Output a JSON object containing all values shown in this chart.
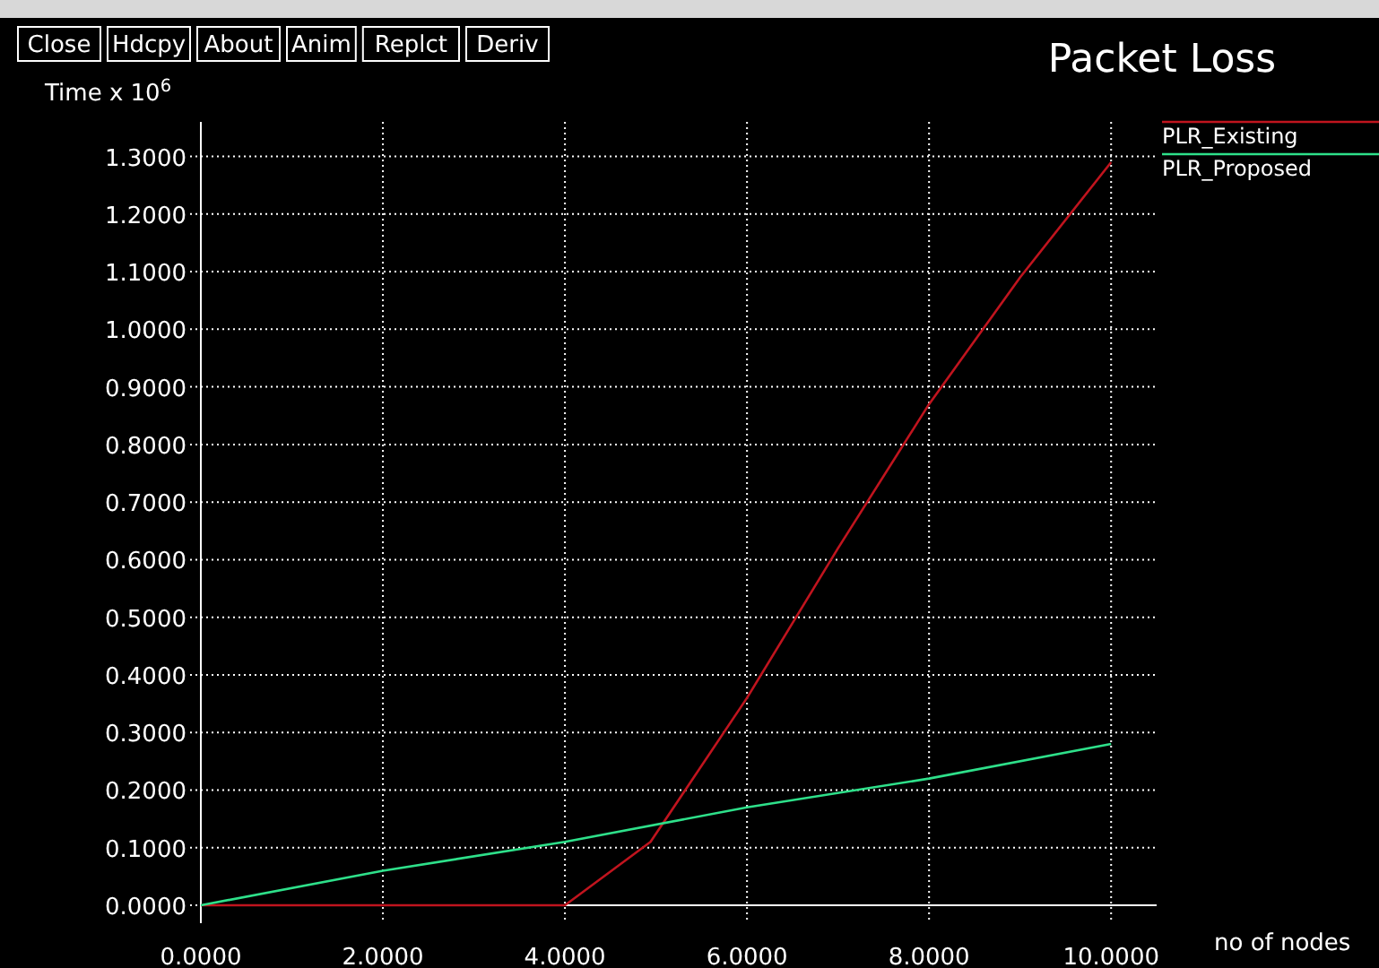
{
  "chart_data": {
    "type": "line",
    "title": "Packet Loss",
    "xlabel": "no of nodes",
    "ylabel": "Time x 10$^{6}$",
    "annotations": [
      "Close",
      "Hdcpy",
      "About",
      "Anim",
      "Replct",
      "Deriv"
    ],
    "xlim": [
      0,
      10.5
    ],
    "ylim": [
      0,
      1.36
    ],
    "xticks": [
      {
        "value": 0,
        "label": "0.0000"
      },
      {
        "value": 2,
        "label": "2.0000"
      },
      {
        "value": 4,
        "label": "4.0000"
      },
      {
        "value": 6,
        "label": "6.0000"
      },
      {
        "value": 8,
        "label": "8.0000"
      },
      {
        "value": 10,
        "label": "10.0000"
      }
    ],
    "yticks": [
      {
        "value": 0,
        "label": "0.0000"
      },
      {
        "value": 0.1,
        "label": "0.1000"
      },
      {
        "value": 0.2,
        "label": "0.2000"
      },
      {
        "value": 0.3,
        "label": "0.3000"
      },
      {
        "value": 0.4,
        "label": "0.4000"
      },
      {
        "value": 0.5,
        "label": "0.5000"
      },
      {
        "value": 0.6,
        "label": "0.6000"
      },
      {
        "value": 0.7,
        "label": "0.7000"
      },
      {
        "value": 0.8,
        "label": "0.8000"
      },
      {
        "value": 0.9,
        "label": "0.9000"
      },
      {
        "value": 1.0,
        "label": "1.0000"
      },
      {
        "value": 1.1,
        "label": "1.1000"
      },
      {
        "value": 1.2,
        "label": "1.2000"
      },
      {
        "value": 1.3,
        "label": "1.3000"
      }
    ],
    "grid": true,
    "legend": "top right",
    "line_style": "solid",
    "series": [
      {
        "name": "PLR_Existing",
        "color": "#c0141e",
        "x": [
          0,
          4,
          4.94,
          6,
          7,
          8,
          9,
          10
        ],
        "values": [
          0,
          0,
          0.11,
          0.36,
          0.62,
          0.87,
          1.09,
          1.29
        ]
      },
      {
        "name": "PLR_Proposed",
        "color": "#2ee08a",
        "x": [
          0,
          2,
          4,
          6,
          8,
          10
        ],
        "values": [
          0,
          0.06,
          0.11,
          0.17,
          0.22,
          0.28
        ]
      }
    ]
  }
}
